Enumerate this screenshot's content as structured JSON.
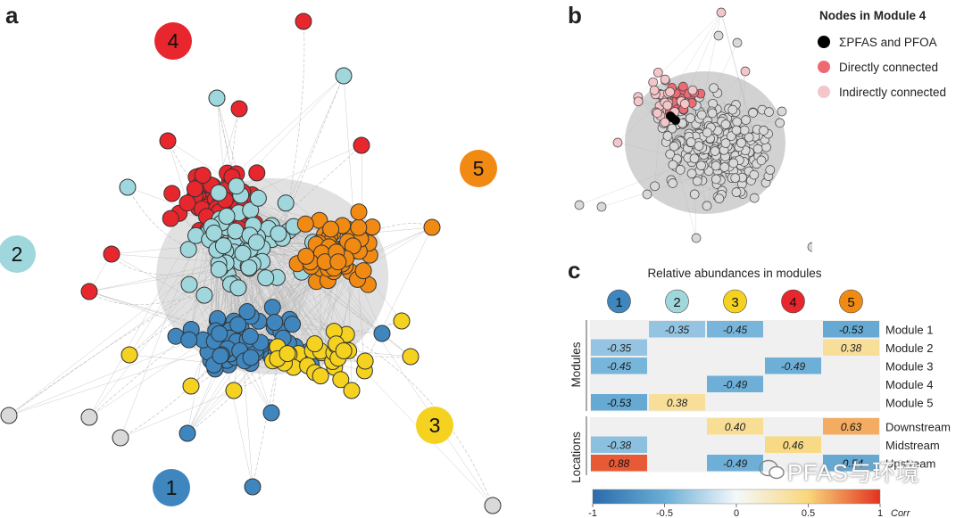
{
  "panels": {
    "a": "a",
    "b": "b",
    "c": "c"
  },
  "colors": {
    "module1": "#3e86bd",
    "module2": "#9fd7dc",
    "module3": "#f4d21f",
    "module4": "#e8262d",
    "module5": "#f08a13",
    "unassigned": "#d9d9d9",
    "pfas": "#000000",
    "direct": "#ee6a72",
    "indirect": "#f4c5c9"
  },
  "network_a": {
    "module_labels": [
      {
        "id": "1",
        "color_key": "module1"
      },
      {
        "id": "2",
        "color_key": "module2"
      },
      {
        "id": "3",
        "color_key": "module3"
      },
      {
        "id": "4",
        "color_key": "module4"
      },
      {
        "id": "5",
        "color_key": "module5"
      }
    ]
  },
  "legend_b": {
    "title": "Nodes in Module 4",
    "items": [
      {
        "label": "ΣPFAS and PFOA",
        "color_key": "pfas"
      },
      {
        "label": "Directly connected",
        "color_key": "direct"
      },
      {
        "label": "Indirectly connected",
        "color_key": "indirect"
      }
    ]
  },
  "heatmap_c": {
    "title": "Relative abundances in modules",
    "columns": [
      "1",
      "2",
      "3",
      "4",
      "5"
    ],
    "column_color_keys": [
      "module1",
      "module2",
      "module3",
      "module4",
      "module5"
    ],
    "group_modules_label": "Modules",
    "group_locations_label": "Locations",
    "rows_modules": [
      {
        "label": "Module 1",
        "values": [
          null,
          "-0.35",
          "-0.45",
          null,
          "-0.53"
        ]
      },
      {
        "label": "Module 2",
        "values": [
          "-0.35",
          null,
          null,
          null,
          "0.38"
        ]
      },
      {
        "label": "Module 3",
        "values": [
          "-0.45",
          null,
          null,
          "-0.49",
          null
        ]
      },
      {
        "label": "Module 4",
        "values": [
          null,
          null,
          "-0.49",
          null,
          null
        ]
      },
      {
        "label": "Module 5",
        "values": [
          "-0.53",
          "0.38",
          null,
          null,
          null
        ]
      }
    ],
    "rows_locations": [
      {
        "label": "Downstream",
        "values": [
          null,
          null,
          "0.40",
          null,
          "0.63"
        ]
      },
      {
        "label": "Midstream",
        "values": [
          "-0.38",
          null,
          null,
          "0.46",
          null
        ]
      },
      {
        "label": "Upstream",
        "values": [
          "0.88",
          null,
          "-0.49",
          null,
          "-0.54"
        ]
      }
    ],
    "colorbar": {
      "ticks": [
        "-1",
        "-0.5",
        "0",
        "0.5",
        "1"
      ],
      "label": "Corr",
      "min": -1,
      "max": 1
    }
  },
  "watermark": "PFAS与环境"
}
